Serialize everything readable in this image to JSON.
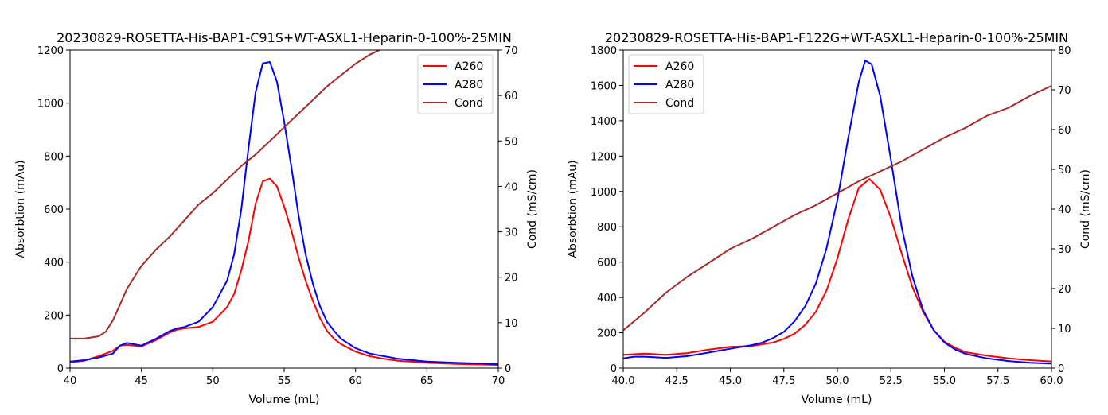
{
  "chart_data": [
    {
      "type": "line",
      "title": "20230829-ROSETTA-His-BAP1-C91S+WT-ASXL1-Heparin-0-100%-25MIN",
      "xlabel": "Volume (mL)",
      "ylabel": "Absorbtion (mAu)",
      "y2label": "Cond (mS/cm)",
      "xlim": [
        40,
        70
      ],
      "ylim": [
        0,
        1200
      ],
      "y2lim": [
        0,
        70
      ],
      "xticks": [
        40,
        45,
        50,
        55,
        60,
        65,
        70
      ],
      "xtick_labels": [
        "40",
        "45",
        "50",
        "55",
        "60",
        "65",
        "70"
      ],
      "yticks": [
        0,
        200,
        400,
        600,
        800,
        1000,
        1200
      ],
      "y2ticks": [
        0,
        10,
        20,
        30,
        40,
        50,
        60,
        70
      ],
      "legend": "top-right",
      "grid": false,
      "series": [
        {
          "name": "A260",
          "axis": "left",
          "color": "#ff0000",
          "x": [
            40,
            41,
            42,
            43,
            43.5,
            44,
            45,
            46,
            47,
            47.5,
            48,
            49,
            50,
            51,
            51.5,
            52,
            52.5,
            53,
            53.5,
            54,
            54.5,
            55,
            55.5,
            56,
            56.5,
            57,
            57.5,
            58,
            58.5,
            59,
            60,
            61,
            62,
            63,
            65,
            67,
            70
          ],
          "y": [
            22,
            28,
            45,
            65,
            85,
            88,
            82,
            105,
            135,
            145,
            150,
            155,
            175,
            230,
            280,
            370,
            480,
            620,
            705,
            715,
            685,
            610,
            520,
            420,
            330,
            255,
            190,
            140,
            110,
            90,
            62,
            45,
            35,
            28,
            20,
            16,
            12
          ]
        },
        {
          "name": "A280",
          "axis": "left",
          "color": "#0000ff",
          "x": [
            40,
            41,
            42,
            43,
            43.5,
            44,
            45,
            46,
            47,
            47.5,
            48,
            49,
            50,
            51,
            51.5,
            52,
            52.5,
            53,
            53.5,
            54,
            54.5,
            55,
            55.5,
            56,
            56.5,
            57,
            57.5,
            58,
            58.5,
            59,
            60,
            61,
            62,
            63,
            65,
            67,
            70
          ],
          "y": [
            25,
            30,
            40,
            55,
            85,
            95,
            85,
            110,
            140,
            150,
            155,
            175,
            230,
            330,
            430,
            600,
            830,
            1040,
            1150,
            1155,
            1080,
            930,
            760,
            580,
            430,
            320,
            235,
            175,
            140,
            110,
            75,
            55,
            45,
            35,
            25,
            20,
            15
          ]
        },
        {
          "name": "Cond",
          "axis": "right",
          "color": "#a52a2a",
          "x": [
            40,
            41,
            42,
            42.5,
            43,
            43.5,
            44,
            45,
            46,
            47,
            48,
            49,
            50,
            51,
            52,
            53,
            54,
            55,
            56,
            57,
            58,
            59,
            60,
            61,
            62
          ],
          "y": [
            6.5,
            6.5,
            7.0,
            8.0,
            10.5,
            14.0,
            17.5,
            22.5,
            26.0,
            29.0,
            32.5,
            36.0,
            38.5,
            41.5,
            44.5,
            47.0,
            50.0,
            53.0,
            56.0,
            59.0,
            62.0,
            64.5,
            67.0,
            69.0,
            70.5
          ]
        }
      ]
    },
    {
      "type": "line",
      "title": "20230829-ROSETTA-His-BAP1-F122G+WT-ASXL1-Heparin-0-100%-25MIN",
      "xlabel": "Volume (mL)",
      "ylabel": "Absorbtion (mAu)",
      "y2label": "Cond (mS/cm)",
      "xlim": [
        40,
        60
      ],
      "ylim": [
        0,
        1800
      ],
      "y2lim": [
        0,
        80
      ],
      "xticks": [
        40,
        42.5,
        45,
        47.5,
        50,
        52.5,
        55,
        57.5,
        60
      ],
      "xtick_labels": [
        "40.0",
        "42.5",
        "45.0",
        "47.5",
        "50.0",
        "52.5",
        "55.0",
        "57.5",
        "60.0"
      ],
      "yticks": [
        0,
        200,
        400,
        600,
        800,
        1000,
        1200,
        1400,
        1600,
        1800
      ],
      "y2ticks": [
        0,
        10,
        20,
        30,
        40,
        50,
        60,
        70,
        80
      ],
      "legend": "top-left",
      "grid": false,
      "series": [
        {
          "name": "A260",
          "axis": "left",
          "color": "#ff0000",
          "x": [
            40,
            41,
            42,
            43,
            44,
            45,
            46,
            46.5,
            47,
            47.5,
            48,
            48.5,
            49,
            49.5,
            50,
            50.5,
            51,
            51.5,
            52,
            52.5,
            53,
            53.5,
            54,
            54.5,
            55,
            55.5,
            56,
            57,
            58,
            59,
            60
          ],
          "y": [
            75,
            82,
            75,
            85,
            105,
            120,
            125,
            135,
            145,
            165,
            195,
            245,
            320,
            440,
            620,
            840,
            1020,
            1070,
            1010,
            850,
            650,
            460,
            320,
            215,
            150,
            115,
            90,
            70,
            55,
            45,
            38
          ]
        },
        {
          "name": "A280",
          "axis": "left",
          "color": "#0000ff",
          "x": [
            40,
            40.5,
            41,
            42,
            43,
            44,
            45,
            46,
            46.5,
            47,
            47.5,
            48,
            48.5,
            49,
            49.5,
            50,
            50.5,
            51,
            51.3,
            51.6,
            52,
            52.5,
            53,
            53.5,
            54,
            54.5,
            55,
            55.5,
            56,
            57,
            58,
            59,
            60
          ],
          "y": [
            55,
            65,
            65,
            58,
            68,
            88,
            110,
            130,
            145,
            170,
            205,
            265,
            350,
            480,
            680,
            950,
            1300,
            1620,
            1740,
            1720,
            1540,
            1180,
            800,
            520,
            330,
            215,
            145,
            105,
            80,
            55,
            40,
            30,
            25
          ]
        },
        {
          "name": "Cond",
          "axis": "right",
          "color": "#a52a2a",
          "x": [
            40,
            41,
            42,
            43,
            44,
            45,
            46,
            47,
            48,
            49,
            50,
            51,
            52,
            53,
            54,
            55,
            56,
            57,
            58,
            59,
            60
          ],
          "y": [
            9.5,
            14.0,
            19.0,
            23.0,
            26.5,
            30.0,
            32.5,
            35.5,
            38.5,
            41.0,
            44.0,
            47.0,
            49.5,
            52.0,
            55.0,
            58.0,
            60.5,
            63.5,
            65.5,
            68.5,
            71.0
          ]
        }
      ]
    }
  ]
}
